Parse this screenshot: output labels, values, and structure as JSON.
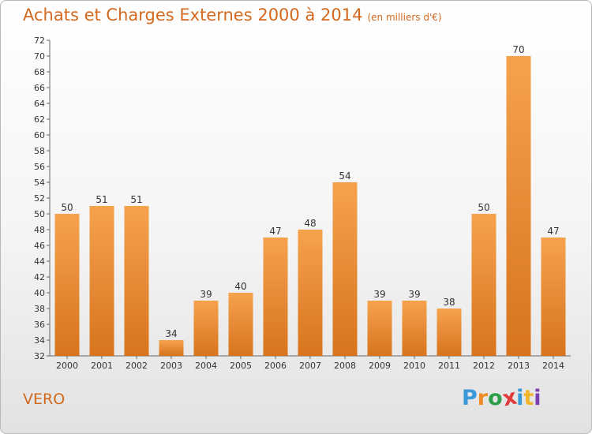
{
  "header": {
    "title": "Achats et Charges Externes 2000 à 2014",
    "subtitle": "(en milliers d'€)"
  },
  "footer": {
    "commune": "VERO",
    "logo_letters": [
      "P",
      "r",
      "o",
      "x",
      "i",
      "t",
      "i"
    ],
    "logo_colors": [
      "#3a9ad9",
      "#f08a24",
      "#2e9e4a",
      "#e03a3a",
      "#3a9ad9",
      "#f0b429",
      "#7a3fb0"
    ]
  },
  "colors": {
    "bar_light": "#f6a24d",
    "bar_dark": "#d8741e",
    "axis": "#666666",
    "grid": "#c8c8c8"
  },
  "chart_data": {
    "type": "bar",
    "title": "Achats et Charges Externes 2000 à 2014",
    "subtitle": "(en milliers d'€)",
    "categories": [
      "2000",
      "2001",
      "2002",
      "2003",
      "2004",
      "2005",
      "2006",
      "2007",
      "2008",
      "2009",
      "2010",
      "2011",
      "2012",
      "2013",
      "2014"
    ],
    "values": [
      50,
      51,
      51,
      34,
      39,
      40,
      47,
      48,
      54,
      39,
      39,
      38,
      50,
      70,
      47
    ],
    "ylim": [
      32,
      72
    ],
    "yticks": [
      32,
      34,
      36,
      38,
      40,
      42,
      44,
      46,
      48,
      50,
      52,
      54,
      56,
      58,
      60,
      62,
      64,
      66,
      68,
      70,
      72
    ],
    "grid": false,
    "data_labels": true
  }
}
